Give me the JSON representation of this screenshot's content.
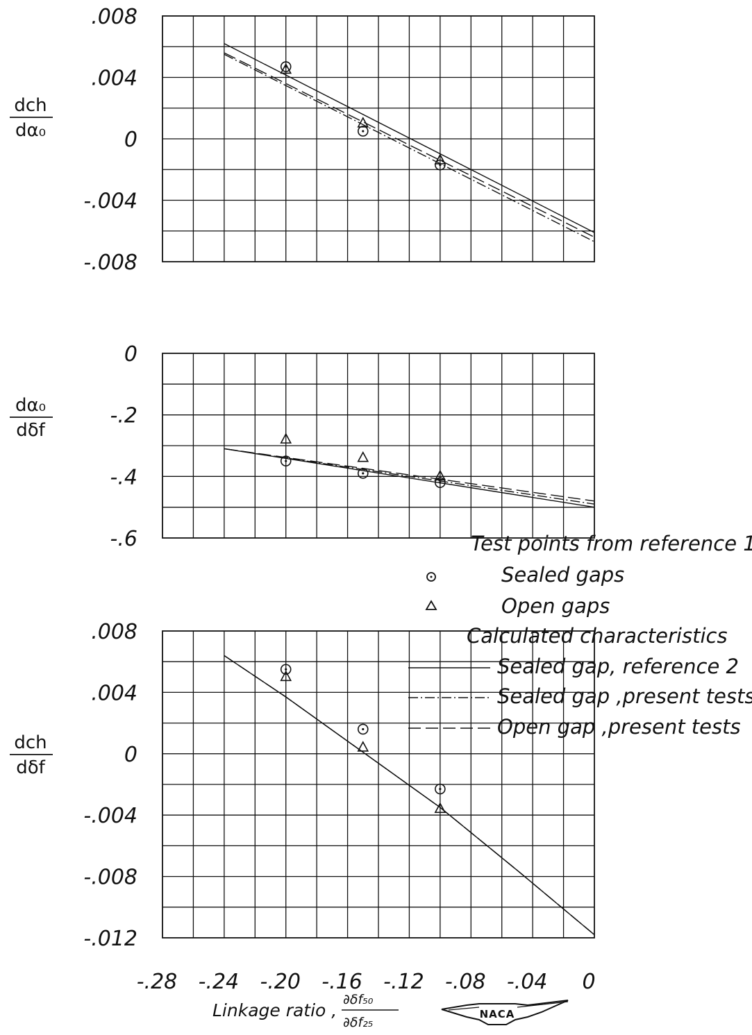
{
  "chart_data": [
    {
      "type": "line",
      "ylabel_num": "dch",
      "ylabel_den": "dα₀",
      "ylim": [
        -0.008,
        0.008
      ],
      "yticks": [
        ".008",
        ".004",
        "0",
        "-.004",
        "-.008"
      ],
      "xlim": [
        -0.28,
        0
      ],
      "grid": true,
      "series": [
        {
          "name": "Sealed gap, reference 2",
          "style": "solid",
          "x": [
            -0.24,
            0
          ],
          "y": [
            0.0062,
            -0.0061
          ]
        },
        {
          "name": "Sealed gap, present tests",
          "style": "dash-dot",
          "x": [
            -0.24,
            0
          ],
          "y": [
            0.0055,
            -0.0067
          ]
        },
        {
          "name": "Open gap, present tests",
          "style": "dashed",
          "x": [
            -0.24,
            0
          ],
          "y": [
            0.0056,
            -0.0064
          ]
        }
      ],
      "points": [
        {
          "name": "Sealed gaps",
          "marker": "circle",
          "x": [
            -0.2,
            -0.15,
            -0.1
          ],
          "y": [
            0.0047,
            0.0005,
            -0.0017
          ]
        },
        {
          "name": "Open gaps",
          "marker": "triangle",
          "x": [
            -0.2,
            -0.15,
            -0.1
          ],
          "y": [
            0.0045,
            0.001,
            -0.0014
          ]
        }
      ]
    },
    {
      "type": "line",
      "ylabel_num": "dα₀",
      "ylabel_den": "dδf",
      "ylim": [
        -0.6,
        0
      ],
      "yticks": [
        "0",
        "-.2",
        "-.4",
        "-.6"
      ],
      "xlim": [
        -0.28,
        0
      ],
      "grid": true,
      "series": [
        {
          "name": "Sealed gap, reference 2",
          "style": "solid",
          "x": [
            -0.24,
            0
          ],
          "y": [
            -0.31,
            -0.5
          ]
        },
        {
          "name": "Sealed gap, present tests",
          "style": "dash-dot",
          "x": [
            -0.24,
            0
          ],
          "y": [
            -0.31,
            -0.49
          ]
        },
        {
          "name": "Open gap, present tests",
          "style": "dashed",
          "x": [
            -0.24,
            0
          ],
          "y": [
            -0.31,
            -0.48
          ]
        }
      ],
      "points": [
        {
          "name": "Sealed gaps",
          "marker": "circle",
          "x": [
            -0.2,
            -0.15,
            -0.1
          ],
          "y": [
            -0.35,
            -0.39,
            -0.42
          ]
        },
        {
          "name": "Open gaps",
          "marker": "triangle",
          "x": [
            -0.2,
            -0.15,
            -0.1
          ],
          "y": [
            -0.28,
            -0.34,
            -0.4
          ]
        }
      ]
    },
    {
      "type": "line",
      "ylabel_num": "dch",
      "ylabel_den": "dδf",
      "ylim": [
        -0.012,
        0.008
      ],
      "yticks": [
        ".008",
        ".004",
        "0",
        "-.004",
        "-.008",
        "-.012"
      ],
      "xlim": [
        -0.28,
        0
      ],
      "xticks": [
        "-.28",
        "-.24",
        "-.20",
        "-.16",
        "-.12",
        "-.08",
        "-.04",
        "0"
      ],
      "xlabel_prefix": "Linkage ratio ,",
      "xlabel_num": "∂δf₅₀",
      "xlabel_den": "∂δf₂₅",
      "grid": true,
      "series": [
        {
          "name": "Sealed gap, reference 2",
          "style": "solid",
          "x": [
            -0.24,
            -0.2,
            -0.15,
            -0.1,
            -0.05,
            0
          ],
          "y": [
            0.0064,
            0.0037,
            0.0001,
            -0.0035,
            -0.0076,
            -0.0118
          ]
        },
        {
          "name": "Sealed gap, present tests",
          "style": "dash-dot",
          "x": [
            -0.24,
            -0.2,
            -0.15,
            -0.1,
            -0.05,
            0
          ],
          "y": [
            0.0064,
            0.0037,
            0.0001,
            -0.0035,
            -0.0076,
            -0.0118
          ]
        },
        {
          "name": "Open gap, present tests",
          "style": "dashed",
          "x": [
            -0.24,
            -0.2,
            -0.15,
            -0.1,
            -0.05,
            0
          ],
          "y": [
            0.0064,
            0.0037,
            0.0001,
            -0.0035,
            -0.0076,
            -0.0118
          ]
        }
      ],
      "points": [
        {
          "name": "Sealed gaps",
          "marker": "circle",
          "x": [
            -0.2,
            -0.15,
            -0.1
          ],
          "y": [
            0.0055,
            0.0016,
            -0.0023
          ]
        },
        {
          "name": "Open gaps",
          "marker": "triangle",
          "x": [
            -0.2,
            -0.15,
            -0.1
          ],
          "y": [
            0.005,
            0.0004,
            -0.0036
          ]
        }
      ]
    }
  ],
  "legend": {
    "test_heading": "Test points from reference 1",
    "sealed_gaps": "Sealed gaps",
    "open_gaps": "Open gaps",
    "calc_heading": "Calculated characteristics",
    "line_ref2": "Sealed gap, reference 2",
    "line_sealed": "Sealed gap ,present tests",
    "line_open": "Open gap ,present tests"
  },
  "logo": "NACA"
}
